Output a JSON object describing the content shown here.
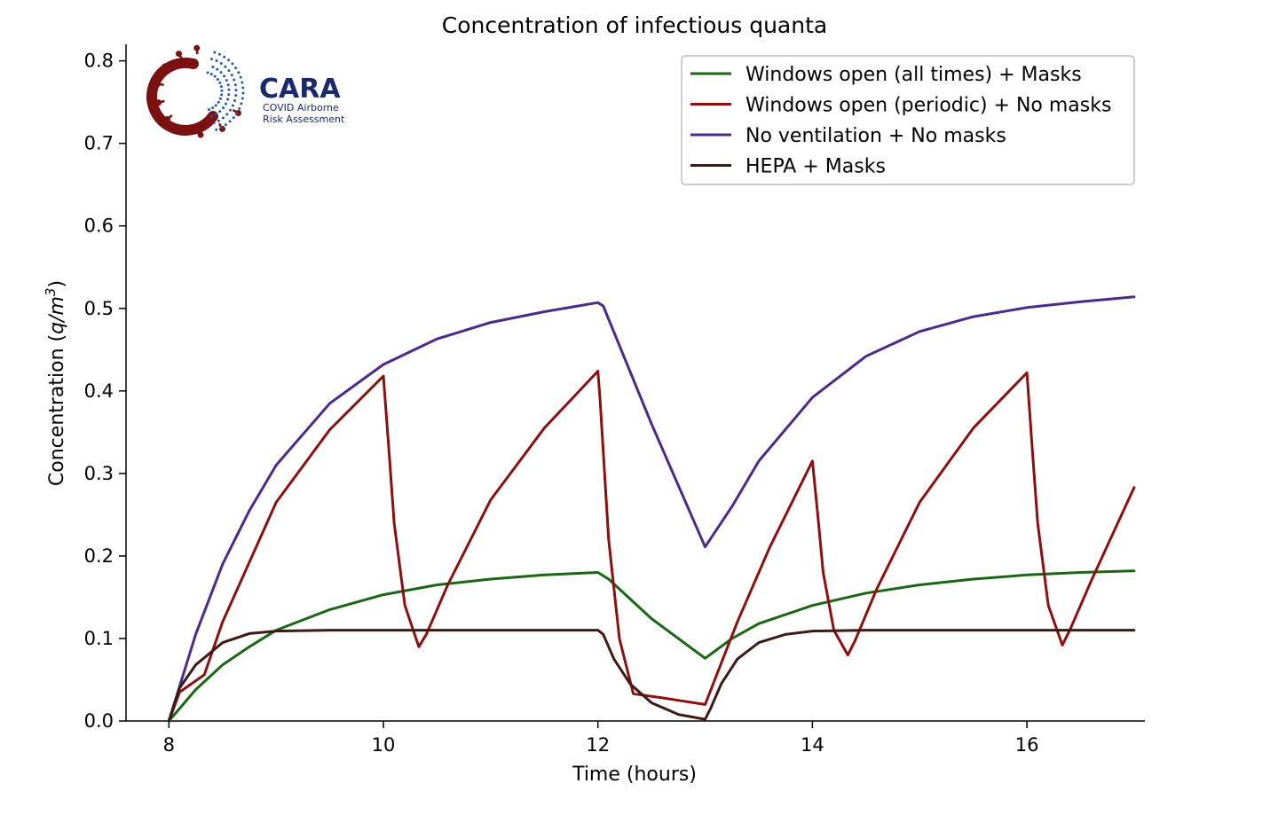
{
  "chart_data": {
    "type": "line",
    "title": "Concentration of infectious quanta",
    "xlabel": "Time (hours)",
    "ylabel": "Concentration (q/m³)",
    "ylabel_parts": {
      "prefix": "Concentration (",
      "var": "q/m",
      "sup": "3",
      "suffix": ")"
    },
    "xlim": [
      7.6,
      17.1
    ],
    "ylim": [
      0,
      0.82
    ],
    "xticks": [
      8,
      10,
      12,
      14,
      16
    ],
    "xtick_labels": [
      "8",
      "10",
      "12",
      "14",
      "16"
    ],
    "yticks": [
      0.0,
      0.1,
      0.2,
      0.3,
      0.4,
      0.5,
      0.6,
      0.7,
      0.8
    ],
    "ytick_labels": [
      "0.0",
      "0.1",
      "0.2",
      "0.3",
      "0.4",
      "0.5",
      "0.6",
      "0.7",
      "0.8"
    ],
    "legend_position": "top-right",
    "series": [
      {
        "name": "Windows open (all times) + Masks",
        "color": "#1a6614",
        "x": [
          8,
          8.25,
          8.5,
          8.75,
          9,
          9.5,
          10,
          10.5,
          11,
          11.5,
          12,
          12.1,
          12.5,
          13,
          13.25,
          13.5,
          14,
          14.5,
          15,
          15.5,
          16,
          16.5,
          17
        ],
        "y": [
          0.0,
          0.038,
          0.068,
          0.09,
          0.11,
          0.135,
          0.153,
          0.165,
          0.172,
          0.177,
          0.18,
          0.172,
          0.124,
          0.076,
          0.1,
          0.118,
          0.14,
          0.155,
          0.165,
          0.172,
          0.177,
          0.18,
          0.182
        ]
      },
      {
        "name": "Windows open (periodic) + No masks",
        "color": "#8b1010",
        "x": [
          8,
          8.1,
          8.33,
          8.5,
          9,
          9.5,
          10,
          10.05,
          10.1,
          10.2,
          10.33,
          10.4,
          10.6,
          11,
          11.5,
          12,
          12.02,
          12.1,
          12.2,
          12.33,
          12.6,
          13,
          13.3,
          13.6,
          14,
          14.05,
          14.1,
          14.2,
          14.33,
          14.4,
          14.6,
          15,
          15.5,
          16,
          16.05,
          16.1,
          16.2,
          16.33,
          16.4,
          16.6,
          17
        ],
        "y": [
          0.0,
          0.035,
          0.056,
          0.12,
          0.265,
          0.353,
          0.418,
          0.33,
          0.24,
          0.14,
          0.09,
          0.105,
          0.165,
          0.268,
          0.355,
          0.424,
          0.39,
          0.22,
          0.1,
          0.033,
          0.028,
          0.02,
          0.12,
          0.21,
          0.315,
          0.25,
          0.18,
          0.11,
          0.08,
          0.098,
          0.16,
          0.265,
          0.355,
          0.422,
          0.33,
          0.24,
          0.14,
          0.092,
          0.11,
          0.17,
          0.283
        ]
      },
      {
        "name": "No ventilation + No masks",
        "color": "#4b2a8a",
        "x": [
          8,
          8.25,
          8.5,
          8.75,
          9,
          9.5,
          10,
          10.5,
          11,
          11.5,
          12,
          12.05,
          12.5,
          13,
          13.25,
          13.5,
          14,
          14.5,
          15,
          15.5,
          16,
          16.5,
          17
        ],
        "y": [
          0.0,
          0.105,
          0.19,
          0.255,
          0.31,
          0.385,
          0.432,
          0.463,
          0.483,
          0.496,
          0.507,
          0.503,
          0.36,
          0.211,
          0.26,
          0.315,
          0.392,
          0.442,
          0.472,
          0.49,
          0.501,
          0.508,
          0.514
        ]
      },
      {
        "name": "HEPA + Masks",
        "color": "#3d1a14",
        "x": [
          8,
          8.1,
          8.25,
          8.5,
          8.75,
          9,
          9.5,
          10,
          11,
          12,
          12.05,
          12.15,
          12.3,
          12.5,
          12.75,
          13,
          13.05,
          13.15,
          13.3,
          13.5,
          13.75,
          14,
          14.5,
          15,
          16,
          17
        ],
        "y": [
          0.0,
          0.04,
          0.068,
          0.095,
          0.106,
          0.109,
          0.11,
          0.11,
          0.11,
          0.11,
          0.105,
          0.075,
          0.045,
          0.022,
          0.008,
          0.002,
          0.015,
          0.045,
          0.075,
          0.095,
          0.105,
          0.109,
          0.11,
          0.11,
          0.11,
          0.11
        ]
      }
    ]
  },
  "logo": {
    "name": "CARA",
    "subtitle_line1": "COVID Airborne",
    "subtitle_line2": "Risk Assessment",
    "primary_color": "#7a1010",
    "accent_color": "#1b2a6b"
  }
}
